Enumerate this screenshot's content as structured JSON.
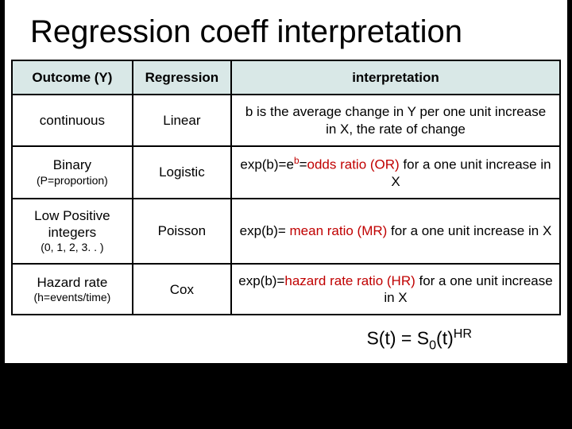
{
  "title": "Regression coeff interpretation",
  "table": {
    "header_bg": "#d9e8e7",
    "border_color": "#000000",
    "header_fontsize": 17,
    "cell_fontsize": 17,
    "sub_fontsize": 14,
    "col_widths_pct": [
      22,
      18,
      60
    ],
    "columns": [
      "Outcome (Y)",
      "Regression",
      "interpretation"
    ],
    "rows": [
      {
        "outcome_main": "continuous",
        "outcome_sub": "",
        "regression": "Linear",
        "interp": "b is the average change in Y per one unit increase in X, the rate of change"
      },
      {
        "outcome_main": "Binary",
        "outcome_sub": "(P=proportion)",
        "regression": "Logistic",
        "interp_prefix": "exp(b)=e",
        "interp_sup": "b",
        "interp_mid": "=",
        "interp_red": "odds ratio (OR)",
        "interp_suffix": " for a one unit increase in X"
      },
      {
        "outcome_main": "Low Positive integers",
        "outcome_sub": "(0, 1, 2, 3. . )",
        "regression": "Poisson",
        "interp_prefix": "exp(b)= ",
        "interp_red": "mean ratio (MR)",
        "interp_suffix": " for a one unit increase in X"
      },
      {
        "outcome_main": "Hazard rate",
        "outcome_sub": "(h=events/time)",
        "regression": "Cox",
        "interp_prefix": "exp(b)=",
        "interp_red": "hazard rate ratio (HR)",
        "interp_suffix": " for a one unit increase in X"
      }
    ]
  },
  "footer": {
    "left": "S(t) = S",
    "sub": "0",
    "mid": "(t)",
    "sup": "HR"
  },
  "colors": {
    "background": "#000000",
    "slide_bg": "#ffffff",
    "title_color": "#000000",
    "highlight": "#c00000"
  },
  "typography": {
    "title_fontsize": 40,
    "title_weight": 400,
    "footer_fontsize": 23,
    "font_family": "Arial"
  }
}
